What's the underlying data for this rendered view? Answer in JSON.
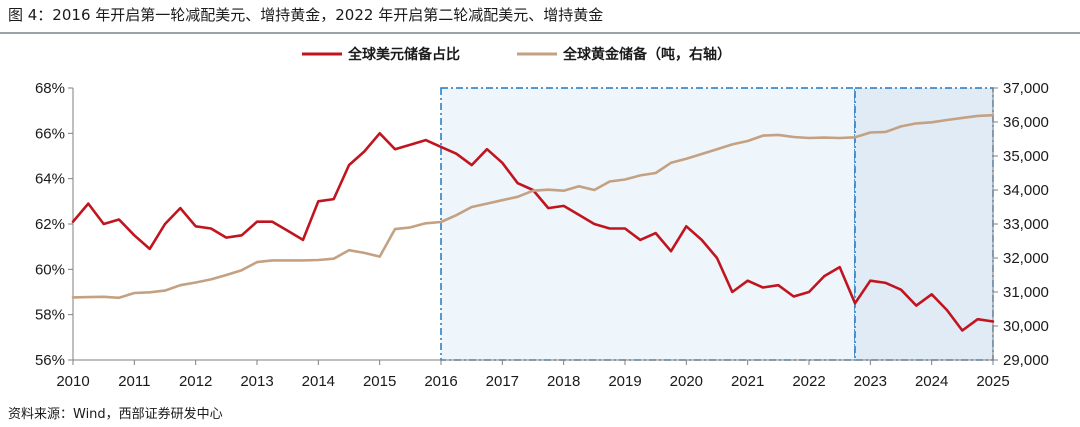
{
  "figure": {
    "title": "图 4：2016 年开启第一轮减配美元、增持黄金，2022 年开启第二轮减配美元、增持黄金",
    "source": "资料来源：Wind，西部证券研发中心"
  },
  "colors": {
    "usd_line": "#c0151f",
    "gold_line": "#c4a182",
    "shade_light": "#eef5fb",
    "shade_dark": "#e1ebf6",
    "shade_border": "#1f78c4",
    "axis": "#7f7f7f"
  },
  "chart_data": {
    "type": "line",
    "title": "2016 年开启第一轮减配美元、增持黄金，2022 年开启第二轮减配美元、增持黄金",
    "x_tick_labels": [
      "2010",
      "2011",
      "2012",
      "2013",
      "2014",
      "2015",
      "2016",
      "2017",
      "2018",
      "2019",
      "2020",
      "2021",
      "2022",
      "2023",
      "2024",
      "2025"
    ],
    "xlim": [
      2010,
      2025
    ],
    "y_left": {
      "ylim": [
        56,
        68
      ],
      "ticks": [
        56,
        58,
        60,
        62,
        64,
        66,
        68
      ],
      "tick_labels": [
        "56%",
        "58%",
        "60%",
        "62%",
        "64%",
        "66%",
        "68%"
      ]
    },
    "y_right": {
      "ylim": [
        29000,
        37000
      ],
      "ticks": [
        29000,
        30000,
        31000,
        32000,
        33000,
        34000,
        35000,
        36000,
        37000
      ],
      "tick_labels": [
        "29,000",
        "30,000",
        "31,000",
        "32,000",
        "33,000",
        "34,000",
        "35,000",
        "36,000",
        "37,000"
      ]
    },
    "legend": {
      "position": "top",
      "entries": [
        "全球美元储备占比",
        "全球黄金储备（吨，右轴）"
      ]
    },
    "highlight_periods": [
      {
        "name": "第一轮",
        "x_start": 2016,
        "x_end": 2022.75
      },
      {
        "name": "第二轮",
        "x_start": 2022.75,
        "x_end": 2025
      }
    ],
    "series": [
      {
        "name": "全球美元储备占比",
        "axis": "left",
        "x": [
          2010.0,
          2010.25,
          2010.5,
          2010.75,
          2011.0,
          2011.25,
          2011.5,
          2011.75,
          2012.0,
          2012.25,
          2012.5,
          2012.75,
          2013.0,
          2013.25,
          2013.5,
          2013.75,
          2014.0,
          2014.25,
          2014.5,
          2014.75,
          2015.0,
          2015.25,
          2015.5,
          2015.75,
          2016.0,
          2016.25,
          2016.5,
          2016.75,
          2017.0,
          2017.25,
          2017.5,
          2017.75,
          2018.0,
          2018.25,
          2018.5,
          2018.75,
          2019.0,
          2019.25,
          2019.5,
          2019.75,
          2020.0,
          2020.25,
          2020.5,
          2020.75,
          2021.0,
          2021.25,
          2021.5,
          2021.75,
          2022.0,
          2022.25,
          2022.5,
          2022.75,
          2023.0,
          2023.25,
          2023.5,
          2023.75,
          2024.0,
          2024.25,
          2024.5,
          2024.75,
          2025.0
        ],
        "values": [
          62.1,
          62.9,
          62.0,
          62.2,
          61.5,
          60.9,
          62.0,
          62.7,
          61.9,
          61.8,
          61.4,
          61.5,
          62.1,
          62.1,
          61.7,
          61.3,
          63.0,
          63.1,
          64.6,
          65.2,
          66.0,
          65.3,
          65.5,
          65.7,
          65.4,
          65.1,
          64.6,
          65.3,
          64.7,
          63.8,
          63.5,
          62.7,
          62.8,
          62.4,
          62.0,
          61.8,
          61.8,
          61.3,
          61.6,
          60.8,
          61.9,
          61.3,
          60.5,
          59.0,
          59.5,
          59.2,
          59.3,
          58.8,
          59.0,
          59.7,
          60.1,
          58.5,
          59.5,
          59.4,
          59.1,
          58.4,
          58.9,
          58.2,
          57.3,
          57.8,
          57.7
        ]
      },
      {
        "name": "全球黄金储备（吨，右轴）",
        "axis": "right",
        "x": [
          2010.0,
          2010.25,
          2010.5,
          2010.75,
          2011.0,
          2011.25,
          2011.5,
          2011.75,
          2012.0,
          2012.25,
          2012.5,
          2012.75,
          2013.0,
          2013.25,
          2013.5,
          2013.75,
          2014.0,
          2014.25,
          2014.5,
          2014.75,
          2015.0,
          2015.25,
          2015.5,
          2015.75,
          2016.0,
          2016.25,
          2016.5,
          2016.75,
          2017.0,
          2017.25,
          2017.5,
          2017.75,
          2018.0,
          2018.25,
          2018.5,
          2018.75,
          2019.0,
          2019.25,
          2019.5,
          2019.75,
          2020.0,
          2020.25,
          2020.5,
          2020.75,
          2021.0,
          2021.25,
          2021.5,
          2021.75,
          2022.0,
          2022.25,
          2022.5,
          2022.75,
          2023.0,
          2023.25,
          2023.5,
          2023.75,
          2024.0,
          2024.25,
          2024.5,
          2024.75,
          2025.0
        ],
        "values": [
          30840,
          30850,
          30860,
          30830,
          30970,
          30990,
          31040,
          31200,
          31280,
          31370,
          31500,
          31640,
          31880,
          31930,
          31930,
          31930,
          31940,
          31980,
          32230,
          32150,
          32040,
          32850,
          32900,
          33020,
          33060,
          33260,
          33500,
          33600,
          33700,
          33800,
          33980,
          34010,
          33980,
          34110,
          34000,
          34250,
          34310,
          34430,
          34500,
          34800,
          34920,
          35060,
          35200,
          35340,
          35440,
          35600,
          35620,
          35560,
          35530,
          35540,
          35530,
          35550,
          35690,
          35710,
          35870,
          35960,
          35990,
          36060,
          36120,
          36180,
          36200
        ]
      }
    ]
  }
}
